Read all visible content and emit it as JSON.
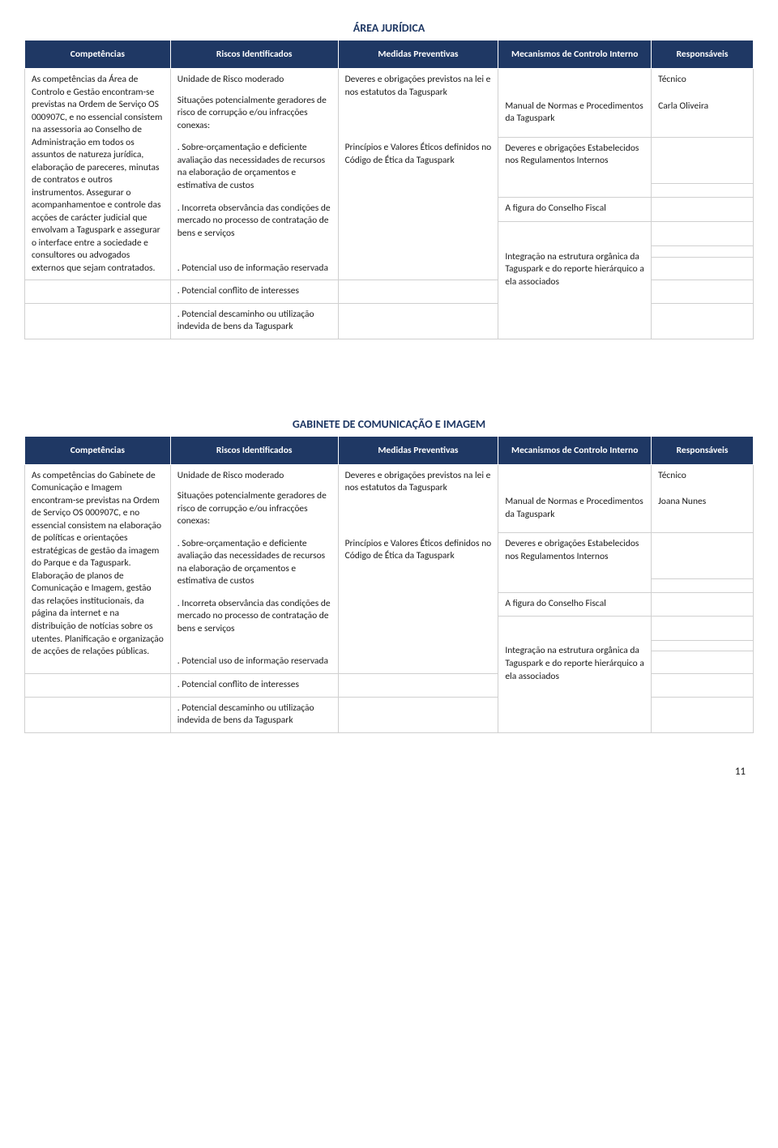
{
  "page_number": "11",
  "colors": {
    "header_bg": "#1f3864",
    "header_fg": "#ffffff",
    "border": "#d0d0d0"
  },
  "columns": {
    "competencias": "Competências",
    "riscos": "Riscos Identificados",
    "medidas": "Medidas Preventivas",
    "mecanismos": "Mecanismos de Controlo Interno",
    "responsaveis": "Responsáveis"
  },
  "section1": {
    "title": "ÁREA JURÍDICA",
    "competencias": "As competências da Área de Controlo e Gestão encontram-se previstas na Ordem de Serviço OS 000907C, e no essencial consistem na assessoria ao Conselho de Administração em todos os assuntos de natureza jurídica, elaboração de pareceres, minutas de contratos e outros instrumentos. Assegurar o acompanhamentoe e controle das acções de carácter judicial que envolvam a Taguspark e assegurar o interface entre a sociedade e consultores ou advogados externos que sejam contratados.",
    "riscos": {
      "r0": "Unidade de Risco moderado",
      "r1": "Situações potencialmente geradores de risco de corrupção e/ou infracções conexas:",
      "r2": ". Sobre-orçamentação e deficiente avaliação das necessidades de recursos na elaboração de orçamentos e estimativa de custos",
      "r3": ". Incorreta observância das condições de mercado no processo de contratação de bens e serviços",
      "r4": ". Potencial uso de informação reservada",
      "r5": ". Potencial conflito de interesses",
      "r6": ". Potencial descaminho ou utilização indevida de bens da Taguspark"
    },
    "medidas": {
      "m1": "Deveres e obrigações previstos na lei e nos estatutos da Taguspark",
      "m2": "Princípios e Valores Éticos definidos no Código de Ética da Taguspark"
    },
    "mecanismos": {
      "k1": " Manual de Normas e Procedimentos da Taguspark",
      "k2": "Deveres e obrigações Estabelecidos nos Regulamentos Internos",
      "k3": "A figura do Conselho Fiscal",
      "k4": "Integração na estrutura orgânica da Taguspark e do reporte hierárquico a ela associados"
    },
    "responsaveis": {
      "p1": "Técnico",
      "p2": "Carla Oliveira"
    }
  },
  "section2": {
    "title": "GABINETE DE COMUNICAÇÃO E IMAGEM",
    "competencias": "As competências do Gabinete de Comunicação e Imagem encontram-se previstas na Ordem de Serviço OS 000907C, e no essencial consistem na elaboração de políticas e orientações estratégicas de gestão da imagem do Parque e da Taguspark. Elaboração de planos de Comunicação e Imagem, gestão das relações institucionais, da página da internet e na distribuição de notícias sobre os utentes. Planificação e organização de acções de relações públicas.",
    "riscos": {
      "r0": "Unidade de Risco moderado",
      "r1": "Situações potencialmente geradores de risco de corrupção e/ou infracções conexas:",
      "r2": ". Sobre-orçamentação e deficiente avaliação das necessidades de recursos na elaboração de orçamentos e estimativa de custos",
      "r3": ". Incorreta observância das condições de mercado no processo de contratação de bens e serviços",
      "r4": ". Potencial uso de informação reservada",
      "r5": ". Potencial conflito de interesses",
      "r6": ". Potencial descaminho ou utilização indevida de bens da Taguspark"
    },
    "medidas": {
      "m1": "Deveres e obrigações previstos na lei e nos estatutos da Taguspark",
      "m2": "Princípios e Valores Éticos definidos no Código de Ética da Taguspark"
    },
    "mecanismos": {
      "k1": " Manual de Normas e Procedimentos da Taguspark",
      "k2": "Deveres e obrigações Estabelecidos nos Regulamentos Internos",
      "k3": "A figura do Conselho Fiscal",
      "k4": "Integração na estrutura orgânica da Taguspark e do reporte hierárquico a ela associados"
    },
    "responsaveis": {
      "p1": "Técnico",
      "p2": "Joana Nunes"
    }
  }
}
